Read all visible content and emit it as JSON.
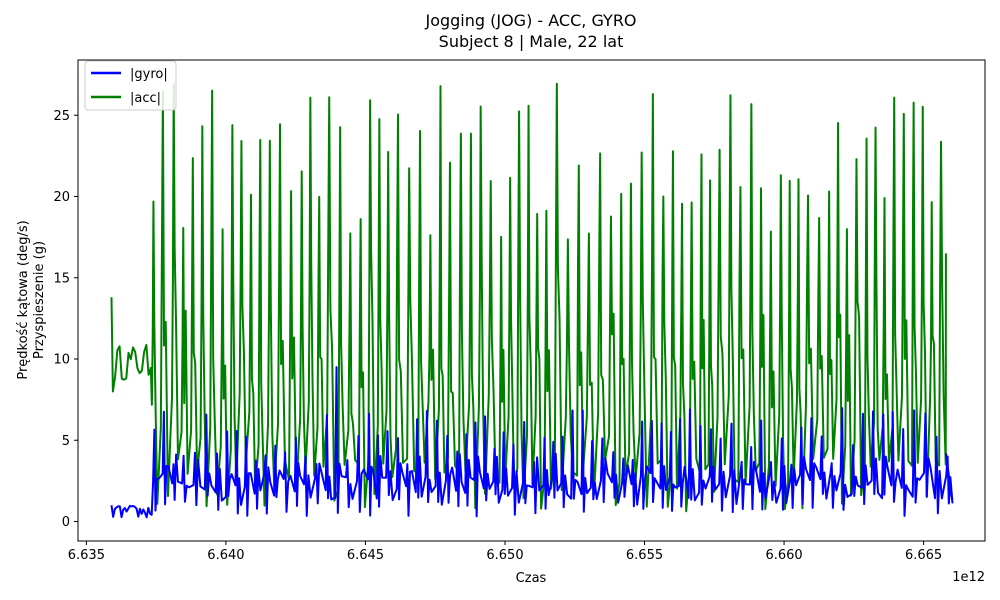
{
  "chart_data": {
    "type": "line",
    "title": "Jogging (JOG) - ACC, GYRO",
    "subtitle": "Subject 8 | Male, 22 lat",
    "xlabel": "Czas",
    "ylabel": "Prędkość kątowa (deg/s)",
    "ylabel2": "Przyspieszenie (g)",
    "x_offset_label": "1e12",
    "xlim": [
      6.6347,
      6.6672
    ],
    "ylim": [
      -1.2,
      28.4
    ],
    "x_ticks": [
      6.635,
      6.64,
      6.645,
      6.65,
      6.655,
      6.66,
      6.665
    ],
    "x_tick_labels": [
      "6.635",
      "6.640",
      "6.645",
      "6.650",
      "6.655",
      "6.660",
      "6.665"
    ],
    "y_ticks": [
      0,
      5,
      10,
      15,
      20,
      25
    ],
    "y_tick_labels": [
      "0",
      "5",
      "10",
      "15",
      "20",
      "25"
    ],
    "grid": false,
    "legend_position": "top-left",
    "series": [
      {
        "name": "|gyro|",
        "color": "#0000ff",
        "x_start": 6.6359,
        "x_end": 6.6658,
        "idle_end": 6.6373,
        "idle_level": 0.6,
        "baseline": 2.2,
        "peak_min": 3.5,
        "peak_max": 7.0,
        "period": 0.00036,
        "notable_peak": {
          "x": 6.644,
          "y": 9.5
        }
      },
      {
        "name": "|acc|",
        "color": "#008000",
        "x_start": 6.6359,
        "x_end": 6.6658,
        "idle_end": 6.6373,
        "idle_level": 9.8,
        "start_value": 13.8,
        "trough_min": 0.5,
        "peak_min": 17.0,
        "peak_max": 27.1,
        "period": 0.00036
      }
    ]
  }
}
